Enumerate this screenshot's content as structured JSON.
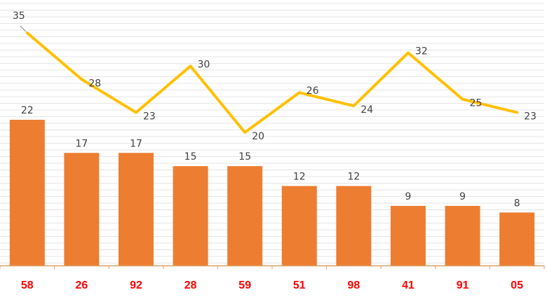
{
  "chart_data": {
    "type": "bar",
    "categories": [
      "58",
      "26",
      "92",
      "28",
      "59",
      "51",
      "98",
      "41",
      "91",
      "05"
    ],
    "series": [
      {
        "type": "bar",
        "values": [
          22,
          17,
          17,
          15,
          15,
          12,
          12,
          9,
          9,
          8
        ]
      },
      {
        "type": "line",
        "values": [
          35,
          28,
          23,
          30,
          20,
          26,
          24,
          32,
          25,
          23
        ]
      }
    ],
    "title": "",
    "xlabel": "",
    "ylabel": "",
    "grid": true,
    "legend": "none",
    "colors": {
      "bar": "#ED7D31",
      "line": "#FFC000",
      "tick_label": "#FF0000",
      "axis": "#D9A066",
      "grid": "#E4E4E4",
      "data_label": "#404040"
    }
  }
}
